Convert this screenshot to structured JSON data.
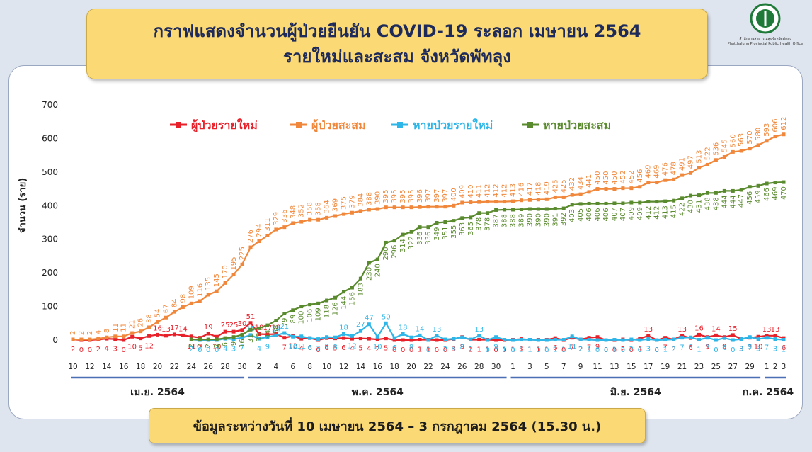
{
  "header": {
    "title": [
      "กราฟแสดงจำนวนผู้ป่วยยืนยัน COVID-19 ระลอก เมษายน 2564",
      "รายใหม่และสะสม จังหวัดพัทลุง"
    ]
  },
  "logo": {
    "name_th": "สำนักงานสาธารณสุขจังหวัดพัทลุง",
    "name_en": "Phatthalung Provincial Public Health Office"
  },
  "chart_data": {
    "type": "line",
    "ylabel": "จำนวน (ราย)",
    "categories": [
      "10",
      null,
      "12",
      null,
      "14",
      null,
      "16",
      null,
      "18",
      null,
      "20",
      null,
      "22",
      null,
      "24",
      null,
      "26",
      null,
      "28",
      null,
      "30",
      null,
      "2",
      null,
      "4",
      null,
      "6",
      null,
      "8",
      null,
      "10",
      null,
      "12",
      null,
      "14",
      null,
      "16",
      null,
      "18",
      null,
      "20",
      null,
      "22",
      null,
      "24",
      null,
      "26",
      null,
      "28",
      null,
      "30",
      null,
      "1",
      null,
      "3",
      null,
      "5",
      null,
      "7",
      null,
      "9",
      null,
      "11",
      null,
      "13",
      null,
      "15",
      null,
      "17",
      null,
      "19",
      null,
      "21",
      null,
      "23",
      null,
      "25",
      null,
      "27",
      null,
      "29",
      null,
      "1",
      "2",
      "3"
    ],
    "months": [
      "เม.ย. 2564",
      "พ.ค. 2564",
      "มิ.ย. 2564",
      "ก.ค. 2564"
    ],
    "ylim": [
      0,
      700
    ],
    "yticks": [
      0,
      100,
      200,
      300,
      400,
      500,
      600,
      700
    ],
    "grid": false,
    "legend": "top",
    "series": [
      {
        "name": "ผู้ป่วยรายใหม่",
        "color": "#e8202a",
        "values": [
          2,
          0,
          0,
          2,
          4,
          3,
          0,
          10,
          5,
          12,
          16,
          13,
          17,
          14,
          11,
          7,
          19,
          10,
          25,
          25,
          30,
          51,
          18,
          17,
          18,
          7,
          12,
          4,
          6,
          0,
          6,
          5,
          6,
          4,
          5,
          4,
          2,
          5,
          0,
          0,
          0,
          1,
          1,
          0,
          0,
          3,
          9,
          1,
          1,
          1,
          0,
          0,
          1,
          3,
          1,
          1,
          1,
          6,
          0,
          7,
          2,
          7,
          9,
          0,
          0,
          2,
          0,
          4,
          13,
          0,
          7,
          2,
          13,
          6,
          16,
          9,
          14,
          9,
          15,
          3,
          7,
          10,
          13,
          13,
          6
        ]
      },
      {
        "name": "ผู้ป่วยสะสม",
        "color": "#f0873a",
        "values": [
          2,
          2,
          2,
          4,
          8,
          11,
          11,
          21,
          26,
          38,
          54,
          67,
          84,
          98,
          109,
          116,
          135,
          145,
          170,
          195,
          225,
          276,
          294,
          311,
          329,
          336,
          348,
          352,
          358,
          358,
          364,
          369,
          375,
          379,
          384,
          388,
          390,
          395,
          395,
          395,
          395,
          396,
          397,
          397,
          397,
          400,
          409,
          410,
          411,
          412,
          412,
          412,
          413,
          416,
          417,
          418,
          419,
          425,
          425,
          432,
          434,
          441,
          450,
          450,
          450,
          452,
          452,
          456,
          469,
          469,
          476,
          478,
          491,
          497,
          513,
          522,
          536,
          545,
          560,
          563,
          570,
          580,
          593,
          606,
          612
        ]
      },
      {
        "name": "หายป่วยรายใหม่",
        "color": "#2fb6e8",
        "values": [
          null,
          null,
          null,
          null,
          null,
          null,
          null,
          null,
          null,
          null,
          null,
          null,
          null,
          null,
          2,
          0,
          0,
          0,
          4,
          3,
          7,
          15,
          4,
          9,
          14,
          21,
          10,
          11,
          6,
          3,
          9,
          8,
          18,
          12,
          27,
          47,
          10,
          50,
          6,
          18,
          8,
          14,
          0,
          13,
          2,
          4,
          8,
          2,
          13,
          0,
          9,
          1,
          0,
          1,
          1,
          0,
          0,
          1,
          1,
          11,
          2,
          1,
          0,
          0,
          1,
          0,
          2,
          0,
          3,
          0,
          1,
          2,
          7,
          8,
          1,
          7,
          0,
          6,
          0,
          3,
          9,
          3,
          7,
          3,
          1
        ]
      },
      {
        "name": "หายป่วยสะสม",
        "color": "#5a8a2e",
        "values": [
          null,
          null,
          null,
          null,
          null,
          null,
          null,
          null,
          null,
          null,
          null,
          null,
          null,
          null,
          2,
          2,
          2,
          2,
          6,
          9,
          16,
          31,
          35,
          44,
          58,
          79,
          89,
          100,
          106,
          109,
          118,
          126,
          144,
          156,
          183,
          230,
          240,
          290,
          296,
          314,
          322,
          336,
          336,
          349,
          351,
          355,
          363,
          365,
          378,
          378,
          387,
          388,
          388,
          389,
          390,
          390,
          390,
          391,
          392,
          403,
          405,
          406,
          406,
          406,
          407,
          407,
          409,
          409,
          412,
          412,
          413,
          415,
          422,
          430,
          431,
          438,
          438,
          444,
          444,
          447,
          456,
          459,
          466,
          469,
          470
        ]
      }
    ]
  },
  "footer": {
    "note": "ข้อมูลระหว่างวันที่ 10 เมษายน 2564 – 3 กรกฎาคม 2564 (15.30 น.)"
  }
}
